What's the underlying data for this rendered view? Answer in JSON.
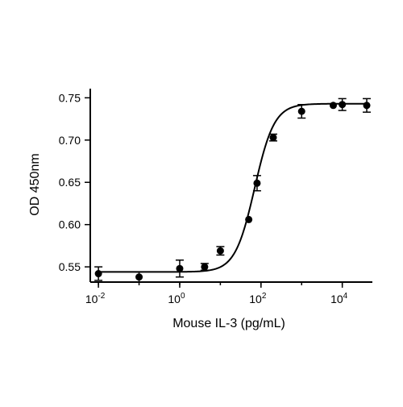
{
  "chart_data": {
    "type": "scatter",
    "title": "",
    "xlabel": "Mouse IL-3 (pg/mL)",
    "ylabel": "OD 450nm",
    "x_scale": "log10",
    "xlim": [
      0.0063,
      55000
    ],
    "ylim": [
      0.532,
      0.757
    ],
    "x_ticks": [
      {
        "value": 0.01,
        "base": "10",
        "exp": "-2"
      },
      {
        "value": 1,
        "base": "10",
        "exp": "0"
      },
      {
        "value": 100,
        "base": "10",
        "exp": "2"
      },
      {
        "value": 10000,
        "base": "10",
        "exp": "4"
      }
    ],
    "y_ticks": [
      "0.55",
      "0.60",
      "0.65",
      "0.70",
      "0.75"
    ],
    "grid": false,
    "series": [
      {
        "points": [
          {
            "x": 0.01,
            "y": 0.542,
            "err": 0.008
          },
          {
            "x": 0.1,
            "y": 0.538,
            "err": 0.006
          },
          {
            "x": 1,
            "y": 0.548,
            "err": 0.01
          },
          {
            "x": 4.1,
            "y": 0.55,
            "err": 0.004
          },
          {
            "x": 10,
            "y": 0.569,
            "err": 0.005
          },
          {
            "x": 50,
            "y": 0.606,
            "err": 0.0
          },
          {
            "x": 80,
            "y": 0.649,
            "err": 0.009
          },
          {
            "x": 200,
            "y": 0.703,
            "err": 0.004
          },
          {
            "x": 1000,
            "y": 0.734,
            "err": 0.008
          },
          {
            "x": 6000,
            "y": 0.741,
            "err": 0.0
          },
          {
            "x": 10000,
            "y": 0.742,
            "err": 0.007
          },
          {
            "x": 40000,
            "y": 0.741,
            "err": 0.008
          }
        ],
        "fit": {
          "model": "4PL",
          "bottom": 0.544,
          "top": 0.743,
          "ec50": 70,
          "hill": 1.8
        }
      }
    ],
    "colors": {
      "points": "#000000",
      "axes": "#000000",
      "fit": "#000000"
    }
  }
}
